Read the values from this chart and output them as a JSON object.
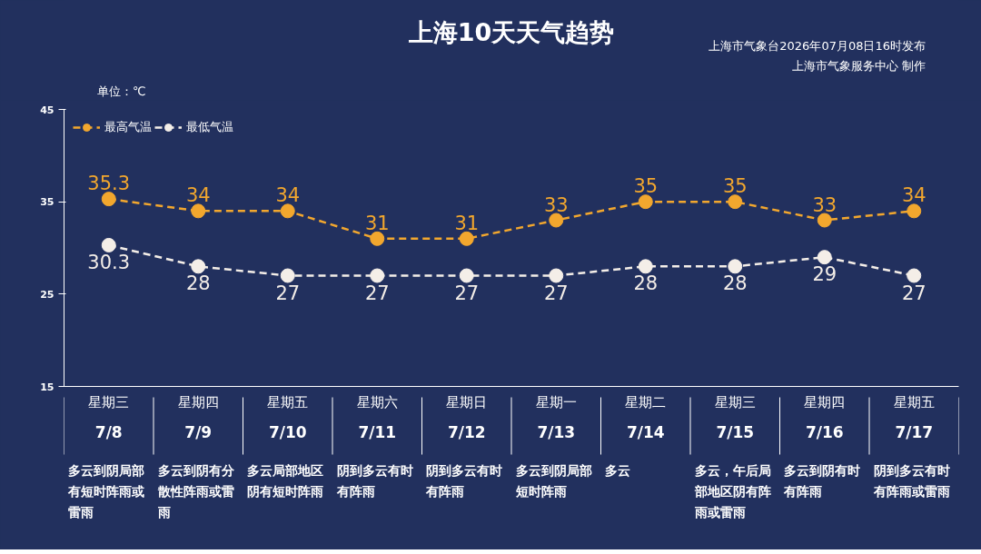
{
  "chart_data": {
    "type": "line",
    "title": "上海10天天气趋势",
    "ylabel": "单位：℃",
    "categories": [
      "星期三\n7/8\n多云到阴局部有短时阵雨或雷雨",
      "星期四\n7/9\n多云到阴有分散性阵雨或雷雨",
      "星期五\n7/10\n多云局部地区阴有短时阵雨",
      "星期六\n7/11\n阴到多云有时有阵雨",
      "星期日\n7/12\n阴到多云有时有阵雨",
      "星期一\n7/13\n多云到阴局部短时阵雨",
      "星期二\n7/14\n多云",
      "星期三\n7/15\n多云，午后局部地区阴有阵雨或雷雨",
      "星期四\n7/16\n多云到阴有时有阵雨",
      "星期五\n7/17\n阴到多云有时有阵雨或雷雨"
    ],
    "series": [
      {
        "name": "最高气温",
        "color": "#f2a72e",
        "values": [
          35.3,
          34,
          34,
          31,
          31,
          33,
          35,
          35,
          33,
          34
        ]
      },
      {
        "name": "最低气温",
        "color": "#f4eee8",
        "values": [
          30.3,
          28,
          27,
          27,
          27,
          27,
          28,
          28,
          29,
          27
        ]
      }
    ],
    "ylim": [
      15,
      45
    ],
    "yticks": [
      15,
      25,
      35,
      45
    ],
    "grid": false,
    "legend": "top left",
    "marker": "circle",
    "line_style": "dashed",
    "data_labels": true,
    "annotations": [
      "上海市气象台2026年07月08日16时发布",
      "上海市气象服务中心 制作"
    ]
  }
}
